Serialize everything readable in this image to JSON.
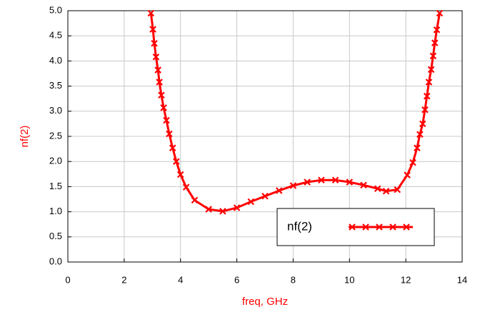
{
  "chart_data": {
    "type": "line",
    "xlabel": "freq, GHz",
    "ylabel": "nf(2)",
    "x": [
      2.95,
      3.02,
      3.07,
      3.13,
      3.2,
      3.25,
      3.32,
      3.4,
      3.5,
      3.6,
      3.72,
      3.85,
      4.0,
      4.2,
      4.5,
      5.0,
      5.5,
      6.0,
      6.5,
      7.0,
      7.5,
      8.0,
      8.5,
      9.0,
      9.5,
      10.0,
      10.5,
      11.0,
      11.3,
      11.7,
      12.05,
      12.25,
      12.4,
      12.5,
      12.6,
      12.68,
      12.75,
      12.82,
      12.9,
      12.97,
      13.03,
      13.1,
      13.2
    ],
    "series": [
      {
        "name": "nf(2)",
        "color": "#ff0000",
        "values": [
          4.95,
          4.63,
          4.35,
          4.08,
          3.82,
          3.58,
          3.32,
          3.07,
          2.82,
          2.55,
          2.27,
          2.0,
          1.74,
          1.49,
          1.23,
          1.05,
          1.01,
          1.08,
          1.2,
          1.31,
          1.42,
          1.52,
          1.59,
          1.63,
          1.63,
          1.59,
          1.53,
          1.46,
          1.41,
          1.44,
          1.73,
          1.98,
          2.27,
          2.54,
          2.75,
          3.03,
          3.3,
          3.58,
          3.83,
          4.1,
          4.36,
          4.62,
          4.95
        ]
      }
    ],
    "xlim": [
      0,
      14
    ],
    "ylim": [
      0,
      5
    ],
    "xticks": [
      0,
      2,
      4,
      6,
      8,
      10,
      12,
      14
    ],
    "yticks": [
      {
        "value": 0,
        "label": "0.0"
      },
      {
        "value": 0.5,
        "label": "0.5"
      },
      {
        "value": 1,
        "label": "1.0"
      },
      {
        "value": 1.5,
        "label": "1.5"
      },
      {
        "value": 2,
        "label": "2.0"
      },
      {
        "value": 2.5,
        "label": "2.5"
      },
      {
        "value": 3,
        "label": "3.0"
      },
      {
        "value": 3.5,
        "label": "3.5"
      },
      {
        "value": 4,
        "label": "4.0"
      },
      {
        "value": 4.5,
        "label": "4.5"
      },
      {
        "value": 5,
        "label": "5.0"
      }
    ],
    "grid": true,
    "legend": "lower right",
    "marker": "x",
    "label_color": "#ff0000"
  }
}
